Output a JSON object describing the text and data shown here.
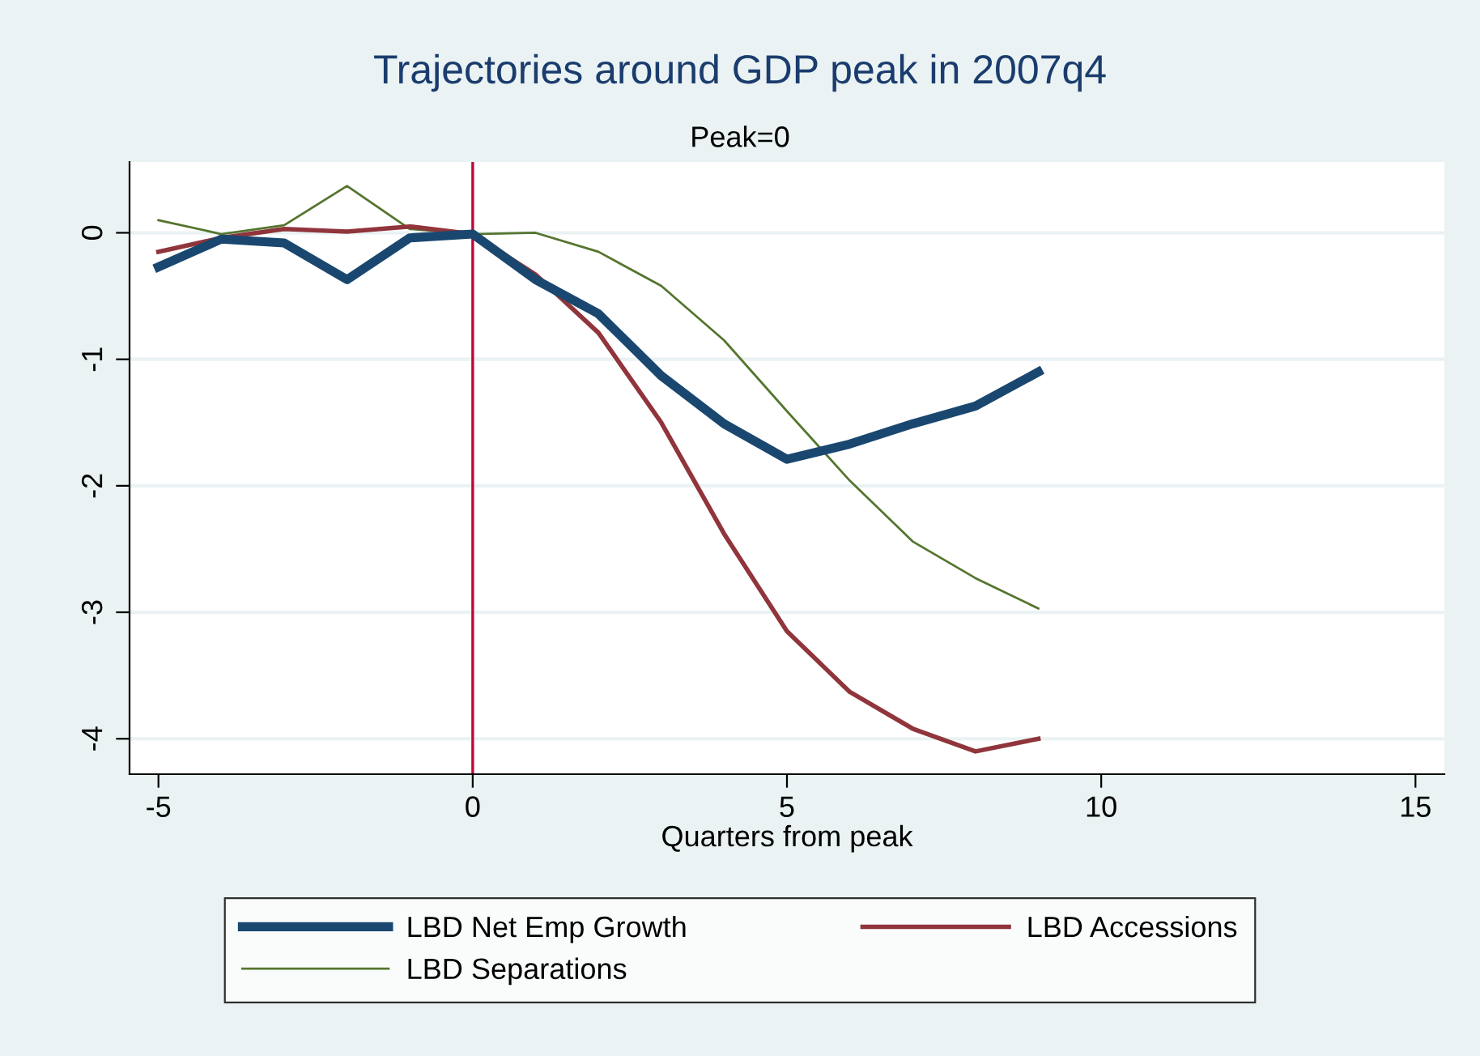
{
  "chart_data": {
    "type": "line",
    "title": "Trajectories around GDP peak in 2007q4",
    "subtitle": "Peak=0",
    "xlabel": "Quarters from peak",
    "x": [
      -5,
      -4,
      -3,
      -2,
      -1,
      0,
      1,
      2,
      3,
      4,
      5,
      6,
      7,
      8,
      9
    ],
    "series": [
      {
        "name": "LBD Net Emp Growth",
        "color": "#1a476f",
        "values": [
          -0.27,
          -0.05,
          -0.08,
          -0.37,
          -0.04,
          -0.01,
          -0.37,
          -0.64,
          -1.13,
          -1.51,
          -1.79,
          -1.67,
          -1.51,
          -1.37,
          -1.1
        ]
      },
      {
        "name": "LBD Accessions",
        "color": "#90353b",
        "values": [
          -0.15,
          -0.04,
          0.03,
          0.01,
          0.05,
          -0.01,
          -0.33,
          -0.79,
          -1.5,
          -2.38,
          -3.15,
          -3.63,
          -3.92,
          -4.1,
          -4.0
        ]
      },
      {
        "name": "LBD Separations",
        "color": "#55752f",
        "values": [
          0.1,
          -0.01,
          0.06,
          0.37,
          0.03,
          -0.01,
          0.0,
          -0.15,
          -0.42,
          -0.85,
          -1.41,
          -1.96,
          -2.44,
          -2.73,
          -2.97
        ]
      }
    ],
    "xlim": [
      -5.46,
      15.46
    ],
    "xticks": [
      -5,
      0,
      5,
      10,
      15
    ],
    "ylim": [
      -4.28,
      0.56
    ],
    "yticks": [
      -4,
      -3,
      -2,
      -1,
      0
    ],
    "ref_lines": [
      {
        "axis": "x",
        "value": 0,
        "color": "#c10534"
      }
    ],
    "grid": "y",
    "legend": "bottom",
    "marker": "none",
    "line_style": "solid"
  }
}
